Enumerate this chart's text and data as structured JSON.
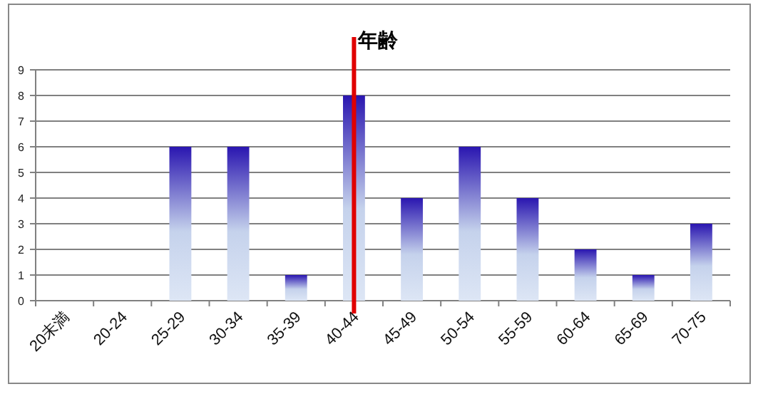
{
  "chart_data": {
    "type": "bar",
    "categories": [
      "20未満",
      "20-24",
      "25-29",
      "30-34",
      "35-39",
      "40-44",
      "45-49",
      "50-54",
      "55-59",
      "60-64",
      "65-69",
      "70-75"
    ],
    "values": [
      0,
      0,
      6,
      6,
      1,
      8,
      4,
      6,
      4,
      2,
      1,
      3
    ],
    "color": "#2a16b0",
    "ylim": [
      0,
      9
    ],
    "yticks": [
      0,
      1,
      2,
      3,
      4,
      5,
      6,
      7,
      8,
      9
    ],
    "grid": "y",
    "ref_lines": [
      {
        "axis": "x",
        "value": "40-44",
        "label": "年齢",
        "color": "#e00000"
      }
    ]
  }
}
